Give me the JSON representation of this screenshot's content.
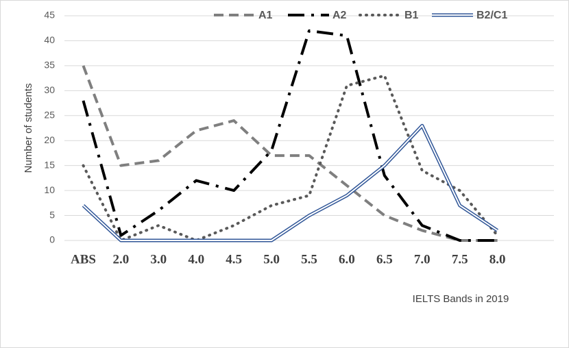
{
  "chart_data": {
    "type": "line",
    "y_label": "Number of students",
    "x_label": "IELTS Bands in 2019",
    "categories": [
      "ABS",
      "2.0",
      "3.0",
      "4.0",
      "4.5",
      "5.0",
      "5.5",
      "6.0",
      "6.5",
      "7.0",
      "7.5",
      "8.0",
      null
    ],
    "series": [
      {
        "name": "A1",
        "color": "#7f7f7f",
        "dash": "14,8",
        "values": [
          35,
          15,
          16,
          22,
          24,
          17,
          17,
          11,
          5,
          2,
          0,
          0,
          null
        ]
      },
      {
        "name": "A2",
        "color": "#000000",
        "dash": "24,10,4,10",
        "values": [
          28,
          1,
          6,
          12,
          10,
          18,
          42,
          41,
          13,
          3,
          0,
          0,
          null
        ]
      },
      {
        "name": "B1",
        "color": "#595959",
        "dash": "1,8",
        "values": [
          15,
          0,
          3,
          0,
          3,
          7,
          9,
          31,
          33,
          14,
          10,
          1,
          null
        ]
      },
      {
        "name": "B2/C1",
        "color": "#2f5597",
        "double": true,
        "values": [
          7,
          0,
          0,
          0,
          0,
          0,
          5,
          9,
          15,
          23,
          7,
          2,
          null
        ]
      }
    ],
    "ylim": [
      0,
      45
    ],
    "yticks": [
      0,
      5,
      10,
      15,
      20,
      25,
      30,
      35,
      40,
      45
    ],
    "grid": true
  }
}
